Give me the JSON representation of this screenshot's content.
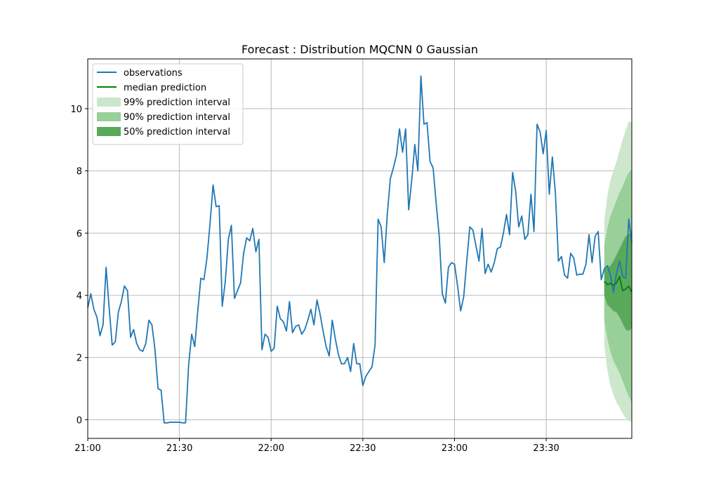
{
  "chart_data": {
    "type": "line",
    "title": "Forecast : Distribution MQCNN 0 Gaussian",
    "xlabel": "",
    "ylabel": "",
    "xlim": [
      "21:00",
      "23:58"
    ],
    "ylim": [
      -0.6,
      11.6
    ],
    "grid": true,
    "legend_position": "top-left",
    "x_ticks": [
      "21:00",
      "21:30",
      "22:00",
      "22:30",
      "23:00",
      "23:30",
      ""
    ],
    "y_ticks": [
      0,
      2,
      4,
      6,
      8,
      10
    ],
    "colors": {
      "observations": "#1f77b4",
      "median": "#008000",
      "band99": "#cce7cc",
      "band90": "#99cf99",
      "band50": "#5aa85a"
    },
    "legend": [
      {
        "label": "observations",
        "kind": "line",
        "color": "#1f77b4"
      },
      {
        "label": "median prediction",
        "kind": "line",
        "color": "#008000"
      },
      {
        "label": "99% prediction interval",
        "kind": "band",
        "color": "#cce7cc"
      },
      {
        "label": "90% prediction interval",
        "kind": "band",
        "color": "#99cf99"
      },
      {
        "label": "50% prediction interval",
        "kind": "band",
        "color": "#5aa85a"
      }
    ],
    "observations": {
      "name": "observations",
      "x": [
        "21:00",
        "21:01",
        "21:02",
        "21:03",
        "21:04",
        "21:05",
        "21:06",
        "21:07",
        "21:08",
        "21:09",
        "21:10",
        "21:11",
        "21:12",
        "21:13",
        "21:14",
        "21:15",
        "21:16",
        "21:17",
        "21:18",
        "21:19",
        "21:20",
        "21:21",
        "21:22",
        "21:23",
        "21:24",
        "21:25",
        "21:26",
        "21:27",
        "21:28",
        "21:29",
        "21:30",
        "21:31",
        "21:32",
        "21:33",
        "21:34",
        "21:35",
        "21:36",
        "21:37",
        "21:38",
        "21:39",
        "21:40",
        "21:41",
        "21:42",
        "21:43",
        "21:44",
        "21:45",
        "21:46",
        "21:47",
        "21:48",
        "21:49",
        "21:50",
        "21:51",
        "21:52",
        "21:53",
        "21:54",
        "21:55",
        "21:56",
        "21:57",
        "21:58",
        "21:59",
        "22:00",
        "22:01",
        "22:02",
        "22:03",
        "22:04",
        "22:05",
        "22:06",
        "22:07",
        "22:08",
        "22:09",
        "22:10",
        "22:11",
        "22:12",
        "22:13",
        "22:14",
        "22:15",
        "22:16",
        "22:17",
        "22:18",
        "22:19",
        "22:20",
        "22:21",
        "22:22",
        "22:23",
        "22:24",
        "22:25",
        "22:26",
        "22:27",
        "22:28",
        "22:29",
        "22:30",
        "22:31",
        "22:32",
        "22:33",
        "22:34",
        "22:35",
        "22:36",
        "22:37",
        "22:38",
        "22:39",
        "22:40",
        "22:41",
        "22:42",
        "22:43",
        "22:44",
        "22:45",
        "22:46",
        "22:47",
        "22:48",
        "22:49",
        "22:50",
        "22:51",
        "22:52",
        "22:53",
        "22:54",
        "22:55",
        "22:56",
        "22:57",
        "22:58",
        "22:59",
        "23:00",
        "23:01",
        "23:02",
        "23:03",
        "23:04",
        "23:05",
        "23:06",
        "23:07",
        "23:08",
        "23:09",
        "23:10",
        "23:11",
        "23:12",
        "23:13",
        "23:14",
        "23:15",
        "23:16",
        "23:17",
        "23:18",
        "23:19",
        "23:20",
        "23:21",
        "23:22",
        "23:23",
        "23:24",
        "23:25",
        "23:26",
        "23:27",
        "23:28",
        "23:29",
        "23:30",
        "23:31",
        "23:32",
        "23:33",
        "23:34",
        "23:35",
        "23:36",
        "23:37",
        "23:38",
        "23:39",
        "23:40",
        "23:41",
        "23:42",
        "23:43",
        "23:44",
        "23:45",
        "23:46",
        "23:47",
        "23:48",
        "23:49",
        "23:50",
        "23:51",
        "23:52",
        "23:53",
        "23:54",
        "23:55",
        "23:56",
        "23:57",
        "23:58"
      ],
      "y": [
        3.6,
        4.05,
        3.55,
        3.3,
        2.7,
        3.05,
        4.9,
        3.6,
        2.4,
        2.5,
        3.45,
        3.8,
        4.3,
        4.15,
        2.65,
        2.9,
        2.45,
        2.25,
        2.2,
        2.45,
        3.2,
        3.05,
        2.25,
        1.0,
        0.95,
        -0.1,
        -0.1,
        -0.08,
        -0.08,
        -0.08,
        -0.08,
        -0.1,
        -0.1,
        1.75,
        2.75,
        2.35,
        3.5,
        4.55,
        4.5,
        5.2,
        6.3,
        7.55,
        6.85,
        6.88,
        3.65,
        4.45,
        5.8,
        6.25,
        3.9,
        4.15,
        4.4,
        5.35,
        5.85,
        5.75,
        6.15,
        5.4,
        5.8,
        2.25,
        2.75,
        2.65,
        2.2,
        2.3,
        3.65,
        3.25,
        3.15,
        2.85,
        3.8,
        2.8,
        3.0,
        3.05,
        2.75,
        2.9,
        3.2,
        3.55,
        3.05,
        3.85,
        3.4,
        2.85,
        2.35,
        2.05,
        3.2,
        2.6,
        2.1,
        1.8,
        1.8,
        2.0,
        1.55,
        2.45,
        1.8,
        1.8,
        1.1,
        1.4,
        1.55,
        1.7,
        2.4,
        6.45,
        6.2,
        5.05,
        6.6,
        7.75,
        8.1,
        8.5,
        9.35,
        8.6,
        9.35,
        6.75,
        7.7,
        8.85,
        8.0,
        11.05,
        9.5,
        9.55,
        8.3,
        8.1,
        6.95,
        5.9,
        4.05,
        3.75,
        4.9,
        5.05,
        5.0,
        4.3,
        3.5,
        3.95,
        5.1,
        6.2,
        6.1,
        5.6,
        5.1,
        6.15,
        4.7,
        5.0,
        4.75,
        5.05,
        5.5,
        5.55,
        6.0,
        6.6,
        5.95,
        7.95,
        7.35,
        6.2,
        6.55,
        5.8,
        5.95,
        7.25,
        6.05,
        9.5,
        9.25,
        8.55,
        9.3,
        7.25,
        8.45,
        7.3,
        5.1,
        5.25,
        4.65,
        4.55,
        5.35,
        5.2,
        4.65,
        4.68,
        4.68,
        5.0,
        5.95,
        5.05,
        5.9,
        6.05,
        4.5,
        4.85,
        4.95,
        4.65,
        4.1,
        4.7,
        5.1,
        4.6,
        4.55,
        6.45,
        5.7
      ]
    },
    "forecast": {
      "x": [
        "23:49",
        "23:50",
        "23:51",
        "23:52",
        "23:53",
        "23:54",
        "23:55",
        "23:56",
        "23:57",
        "23:58"
      ],
      "median": [
        4.45,
        4.35,
        4.38,
        4.32,
        4.4,
        4.6,
        4.15,
        4.2,
        4.3,
        4.1
      ],
      "p50_low": [
        4.0,
        3.7,
        3.6,
        3.5,
        3.45,
        3.3,
        3.1,
        2.9,
        2.85,
        2.95
      ],
      "p50_high": [
        4.85,
        4.9,
        4.95,
        5.1,
        5.3,
        5.5,
        5.7,
        5.9,
        5.95,
        6.1
      ],
      "p90_low": [
        3.2,
        2.6,
        2.2,
        1.9,
        1.7,
        1.5,
        1.25,
        1.0,
        0.75,
        0.55
      ],
      "p90_high": [
        5.6,
        6.15,
        6.55,
        6.8,
        7.05,
        7.3,
        7.5,
        7.75,
        7.95,
        8.05
      ],
      "p99_low": [
        2.4,
        1.6,
        1.1,
        0.8,
        0.55,
        0.4,
        0.2,
        0.05,
        -0.05,
        -0.05
      ],
      "p99_high": [
        6.4,
        7.2,
        7.7,
        8.0,
        8.3,
        8.65,
        9.0,
        9.3,
        9.6,
        9.55
      ]
    }
  }
}
